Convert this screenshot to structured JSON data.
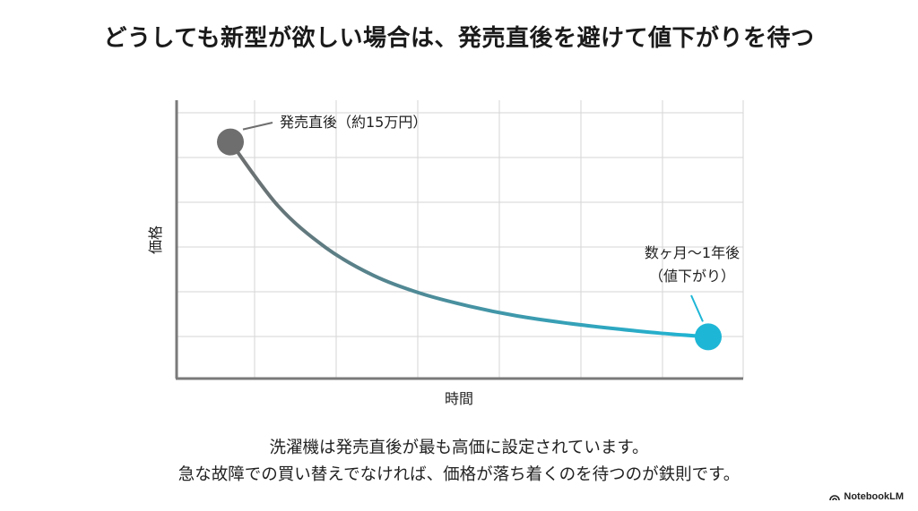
{
  "title": "どうしても新型が欲しい場合は、発売直後を避けて値下がりを待つ",
  "chart_data": {
    "type": "line",
    "xlabel": "時間",
    "ylabel": "価格",
    "grid": true,
    "series": [
      {
        "values_note": "",
        "x": [
          0.0,
          0.1,
          0.2,
          0.3,
          0.4,
          0.5,
          0.6,
          0.7,
          0.8,
          0.9,
          1.0
        ],
        "y": [
          0.85,
          0.62,
          0.47,
          0.37,
          0.305,
          0.26,
          0.225,
          0.2,
          0.18,
          0.163,
          0.15
        ]
      }
    ],
    "annotations": [
      {
        "text": "発売直後（約15万円）",
        "point": "start"
      },
      {
        "text_line1": "数ヶ月〜1年後",
        "text_line2": "（値下がり）",
        "point": "end"
      }
    ],
    "colors": {
      "start": "#6e6e6e",
      "end": "#1eb6d6",
      "grid": "#d6d6d6",
      "axis": "#7a7a7a"
    }
  },
  "captions": {
    "line1": "洗濯機は発売直後が最も高価に設定されています。",
    "line2": "急な故障での買い替えでなければ、価格が落ち着くのを待つのが鉄則です。"
  },
  "brand": {
    "name": "NotebookLM"
  }
}
